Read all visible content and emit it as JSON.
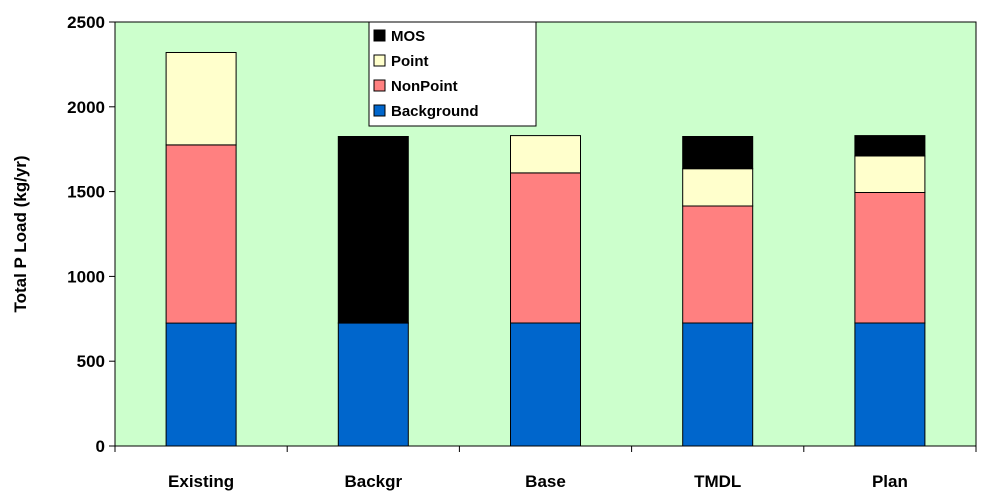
{
  "chart_data": {
    "type": "bar",
    "stacked": true,
    "title": "",
    "xlabel": "",
    "ylabel": "Total P Load (kg/yr)",
    "ylim": [
      0,
      2500
    ],
    "yticks": [
      0,
      500,
      1000,
      1500,
      2000,
      2500
    ],
    "grid": false,
    "legend_position": "top-center",
    "categories": [
      "Existing",
      "Backgr",
      "Base",
      "TMDL",
      "Plan"
    ],
    "series": [
      {
        "name": "Background",
        "color": "#0066cc",
        "values": [
          725,
          725,
          725,
          725,
          725
        ]
      },
      {
        "name": "NonPoint",
        "color": "#ff8080",
        "values": [
          1050,
          0,
          885,
          690,
          770
        ]
      },
      {
        "name": "Point",
        "color": "#ffffcc",
        "values": [
          545,
          0,
          220,
          220,
          215
        ]
      },
      {
        "name": "MOS",
        "color": "#000000",
        "values": [
          0,
          1100,
          0,
          190,
          120
        ]
      }
    ],
    "legend_order": [
      "MOS",
      "Point",
      "NonPoint",
      "Background"
    ],
    "plot_background": "#ccffcc"
  }
}
